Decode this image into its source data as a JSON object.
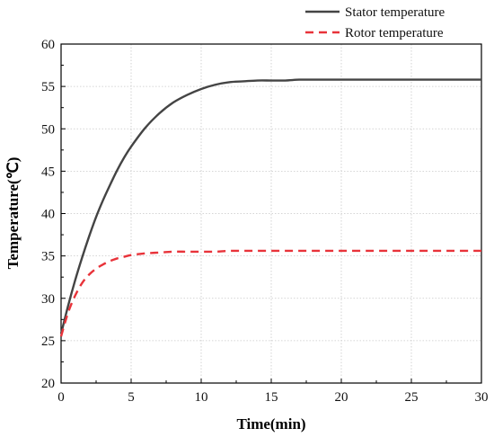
{
  "chart_data": {
    "type": "line",
    "title": "",
    "xlabel": "Time(min)",
    "ylabel": "Temperature(℃)",
    "xlim": [
      0,
      30
    ],
    "ylim": [
      20,
      60
    ],
    "x_ticks": [
      0,
      5,
      10,
      15,
      20,
      25,
      30
    ],
    "y_ticks": [
      20,
      25,
      30,
      35,
      40,
      45,
      50,
      55,
      60
    ],
    "grid": true,
    "legend_position": "top-right",
    "x": [
      0,
      0.5,
      1,
      1.5,
      2,
      2.5,
      3,
      3.5,
      4,
      4.5,
      5,
      6,
      7,
      8,
      9,
      10,
      11,
      12,
      13,
      14,
      15,
      16,
      17,
      18,
      19,
      20,
      22,
      24,
      26,
      28,
      30
    ],
    "series": [
      {
        "name": "Stator temperature",
        "color": "#444444",
        "dash": "solid",
        "values": [
          25.8,
          29.1,
          32.1,
          34.8,
          37.3,
          39.6,
          41.6,
          43.4,
          45.1,
          46.6,
          47.9,
          50.1,
          51.8,
          53.1,
          54.0,
          54.7,
          55.2,
          55.5,
          55.6,
          55.7,
          55.7,
          55.7,
          55.8,
          55.8,
          55.8,
          55.8,
          55.8,
          55.8,
          55.8,
          55.8,
          55.8
        ]
      },
      {
        "name": "Rotor temperature",
        "color": "#e8333a",
        "dash": "dashed",
        "values": [
          25.5,
          28.3,
          30.3,
          31.8,
          32.8,
          33.5,
          34.0,
          34.4,
          34.7,
          34.9,
          35.1,
          35.3,
          35.4,
          35.5,
          35.5,
          35.5,
          35.5,
          35.6,
          35.6,
          35.6,
          35.6,
          35.6,
          35.6,
          35.6,
          35.6,
          35.6,
          35.6,
          35.6,
          35.6,
          35.6,
          35.6
        ]
      }
    ]
  }
}
